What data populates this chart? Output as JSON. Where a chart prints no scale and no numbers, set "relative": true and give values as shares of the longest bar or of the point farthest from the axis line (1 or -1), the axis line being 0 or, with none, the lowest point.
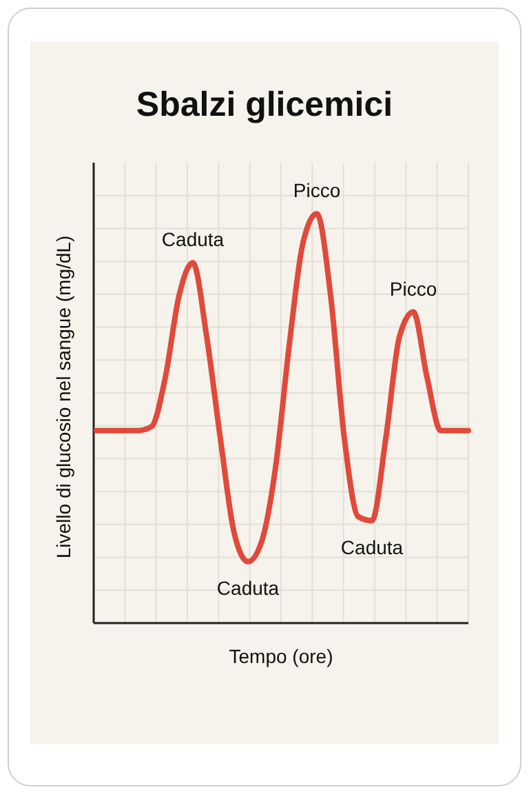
{
  "chart_data": {
    "type": "line",
    "title": "Sbalzi glicemici",
    "xlabel": "Tempo (ore)",
    "ylabel": "Livello di glucosio nel sangue (mg/dL)",
    "relative": true,
    "grid": true,
    "categories": [
      null,
      null,
      null,
      null,
      null,
      null,
      null,
      null,
      null,
      null,
      null,
      null,
      null,
      null,
      null,
      null,
      null,
      null,
      null,
      null,
      null,
      null,
      null,
      null,
      null,
      null,
      null,
      null
    ],
    "series": [
      {
        "color": "#e04a3a",
        "values": [
          0.47,
          0.47,
          0.47,
          0.47,
          0.48,
          0.6,
          0.8,
          0.88,
          0.7,
          0.45,
          0.22,
          0.15,
          0.2,
          0.38,
          0.68,
          0.93,
          1.0,
          0.8,
          0.45,
          0.26,
          0.25,
          0.45,
          0.7,
          0.76,
          0.6,
          0.47,
          0.47,
          0.47
        ]
      }
    ],
    "annotations": [
      "Caduta",
      "Caduta",
      "Picco",
      "Caduta",
      "Picco"
    ]
  }
}
